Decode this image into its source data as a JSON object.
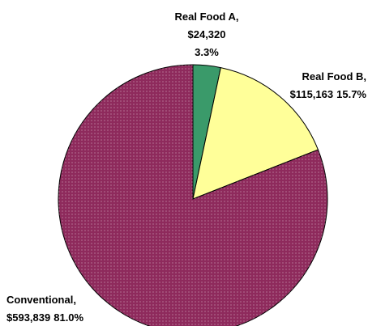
{
  "chart_data": {
    "type": "pie",
    "categories": [
      "Real Food A,",
      "Real Food B,",
      "Conventional,"
    ],
    "values": [
      24320,
      115163,
      593839
    ],
    "value_labels": [
      "$24,320",
      "$115,163",
      "$593,839"
    ],
    "percents": [
      3.3,
      15.7,
      81.0
    ],
    "percent_labels": [
      "3.3%",
      "15.7%",
      "81.0%"
    ],
    "colors": [
      "#3a9a6a",
      "#ffff99",
      "#8e2a5c"
    ]
  }
}
